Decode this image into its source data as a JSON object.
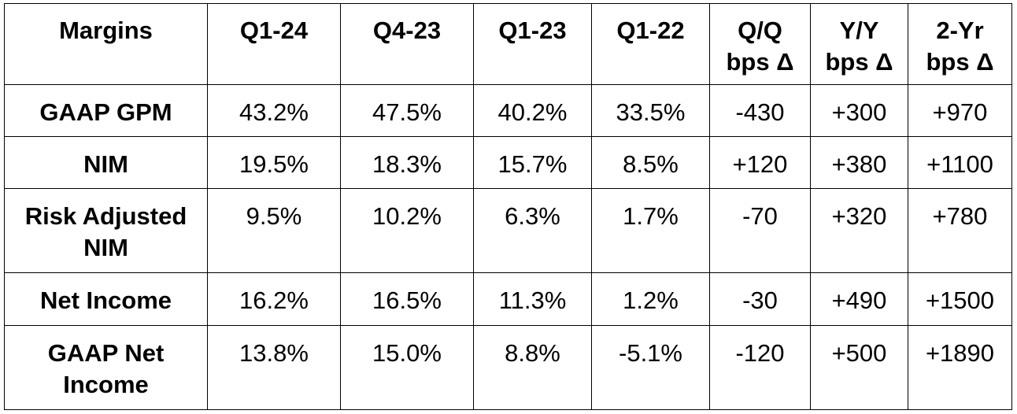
{
  "table": {
    "headers": [
      [
        "Margins"
      ],
      [
        "Q1-24"
      ],
      [
        "Q4-23"
      ],
      [
        "Q1-23"
      ],
      [
        "Q1-22"
      ],
      [
        "Q/Q",
        "bps Δ"
      ],
      [
        "Y/Y",
        "bps Δ"
      ],
      [
        "2-Yr",
        "bps Δ"
      ]
    ],
    "rows": [
      {
        "label": [
          "GAAP GPM"
        ],
        "cells": [
          "43.2%",
          "47.5%",
          "40.2%",
          "33.5%",
          "-430",
          "+300",
          "+970"
        ]
      },
      {
        "label": [
          "NIM"
        ],
        "cells": [
          "19.5%",
          "18.3%",
          "15.7%",
          "8.5%",
          "+120",
          "+380",
          "+1100"
        ]
      },
      {
        "label": [
          "Risk Adjusted",
          "NIM"
        ],
        "cells": [
          "9.5%",
          "10.2%",
          "6.3%",
          "1.7%",
          "-70",
          "+320",
          "+780"
        ]
      },
      {
        "label": [
          "Net Income"
        ],
        "cells": [
          "16.2%",
          "16.5%",
          "11.3%",
          "1.2%",
          "-30",
          "+490",
          "+1500"
        ]
      },
      {
        "label": [
          "GAAP Net",
          "Income"
        ],
        "cells": [
          "13.8%",
          "15.0%",
          "8.8%",
          "-5.1%",
          "-120",
          "+500",
          "+1890"
        ]
      }
    ]
  }
}
